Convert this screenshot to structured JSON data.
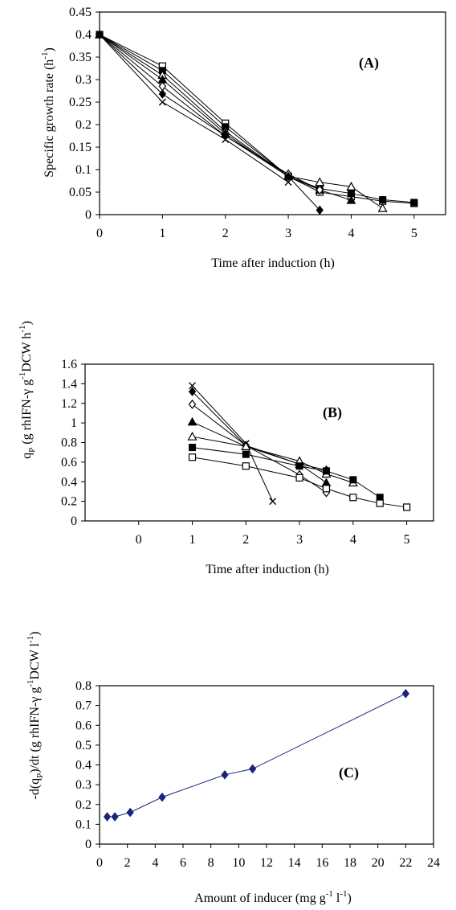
{
  "chart_data": [
    {
      "type": "line",
      "panel_label": "(A)",
      "xlabel": "Time after induction (h)",
      "ylabel": "Specific growth rate (h",
      "ylabel_sup": "-1",
      "ylabel_end": ")",
      "xlim": [
        0,
        5.5
      ],
      "ylim": [
        0,
        0.45
      ],
      "xticks": [
        0,
        1,
        2,
        3,
        4,
        5
      ],
      "yticks": [
        "0",
        "0.05",
        "0.1",
        "0.15",
        "0.2",
        "0.25",
        "0.3",
        "0.35",
        "0.4",
        "0.45"
      ],
      "grid": false,
      "legend": "none",
      "series": [
        {
          "marker": "open-square",
          "x": [
            0,
            1,
            2,
            3,
            3.5,
            4,
            4.5,
            5
          ],
          "y": [
            0.4,
            0.33,
            0.203,
            0.085,
            0.05,
            0.04,
            0.03,
            0.025
          ]
        },
        {
          "marker": "filled-square",
          "x": [
            0,
            1,
            2,
            3,
            3.5,
            4,
            4.5,
            5
          ],
          "y": [
            0.4,
            0.32,
            0.195,
            0.085,
            0.058,
            0.047,
            0.033,
            0.027
          ]
        },
        {
          "marker": "open-triangle",
          "x": [
            0,
            1,
            2,
            3,
            3.5,
            4,
            4.5
          ],
          "y": [
            0.4,
            0.31,
            0.185,
            0.085,
            0.072,
            0.062,
            0.014
          ]
        },
        {
          "marker": "filled-triangle",
          "x": [
            0,
            1,
            2,
            3,
            3.5,
            4
          ],
          "y": [
            0.4,
            0.3,
            0.18,
            0.085,
            0.055,
            0.032
          ]
        },
        {
          "marker": "open-diamond",
          "x": [
            0,
            1,
            2,
            3,
            3.5
          ],
          "y": [
            0.4,
            0.285,
            0.175,
            0.09,
            0.055
          ]
        },
        {
          "marker": "filled-diamond",
          "x": [
            0,
            1,
            2,
            3,
            3.5
          ],
          "y": [
            0.4,
            0.268,
            0.175,
            0.085,
            0.01
          ]
        },
        {
          "marker": "cross",
          "x": [
            0,
            1,
            2,
            3
          ],
          "y": [
            0.4,
            0.25,
            0.167,
            0.072
          ]
        }
      ]
    },
    {
      "type": "line",
      "panel_label": "(B)",
      "xlabel": "Time after induction (h)",
      "ylabel": "q",
      "ylabel_sub": "P",
      "ylabel_mid": " (g rhIFN-γ g",
      "ylabel_sup": "-1",
      "ylabel_end": "DCW h",
      "ylabel_sup2": "-1",
      "ylabel_close": ")",
      "xlim": [
        -1,
        5.5
      ],
      "ylim": [
        0,
        1.6
      ],
      "xticks": [
        0,
        1,
        2,
        3,
        4,
        5
      ],
      "yticks": [
        "0",
        "0.2",
        "0.4",
        "0.6",
        "0.8",
        "1",
        "1.2",
        "1.4",
        "1.6"
      ],
      "grid": false,
      "legend": "none",
      "series": [
        {
          "marker": "cross",
          "x": [
            1,
            2,
            2.5
          ],
          "y": [
            1.38,
            0.79,
            0.2
          ]
        },
        {
          "marker": "filled-diamond",
          "x": [
            1,
            2,
            3,
            3.5
          ],
          "y": [
            1.32,
            0.77,
            0.58,
            0.52
          ]
        },
        {
          "marker": "open-diamond",
          "x": [
            1,
            2,
            3,
            3.5
          ],
          "y": [
            1.19,
            0.77,
            0.47,
            0.29
          ]
        },
        {
          "marker": "filled-triangle",
          "x": [
            1,
            2,
            3,
            3.5
          ],
          "y": [
            1.01,
            0.76,
            0.58,
            0.39
          ]
        },
        {
          "marker": "open-triangle",
          "x": [
            1,
            2,
            3,
            3.5,
            4
          ],
          "y": [
            0.86,
            0.76,
            0.61,
            0.48,
            0.39
          ]
        },
        {
          "marker": "filled-square",
          "x": [
            1,
            2,
            3,
            3.5,
            4,
            4.5
          ],
          "y": [
            0.75,
            0.68,
            0.56,
            0.51,
            0.42,
            0.24
          ]
        },
        {
          "marker": "open-square",
          "x": [
            1,
            2,
            3,
            3.5,
            4,
            4.5,
            5
          ],
          "y": [
            0.65,
            0.56,
            0.44,
            0.33,
            0.24,
            0.18,
            0.14
          ]
        }
      ]
    },
    {
      "type": "line",
      "panel_label": "(C)",
      "xlabel": "Amount of inducer (mg g",
      "xlabel_sup": "-1",
      "xlabel_mid": " l",
      "xlabel_sup2": "-1",
      "xlabel_end": ")",
      "ylabel": "-d(q",
      "ylabel_sub": "P",
      "ylabel_mid": ")/dt (g rhIFN-γ g",
      "ylabel_sup": "-1",
      "ylabel_end": "DCW l",
      "ylabel_sup2": "-1",
      "ylabel_close": ")",
      "xlim": [
        0,
        24
      ],
      "ylim": [
        0,
        0.8
      ],
      "xticks": [
        0,
        2,
        4,
        6,
        8,
        10,
        12,
        14,
        16,
        18,
        20,
        22,
        24
      ],
      "yticks": [
        "0",
        "0.1",
        "0.2",
        "0.3",
        "0.4",
        "0.5",
        "0.6",
        "0.7",
        "0.8"
      ],
      "grid": false,
      "legend": "none",
      "series": [
        {
          "marker": "filled-diamond",
          "color": "#1a237e",
          "x": [
            0.55,
            1.1,
            2.2,
            4.5,
            9,
            11,
            22
          ],
          "y": [
            0.138,
            0.138,
            0.16,
            0.237,
            0.35,
            0.38,
            0.76
          ]
        }
      ]
    }
  ]
}
